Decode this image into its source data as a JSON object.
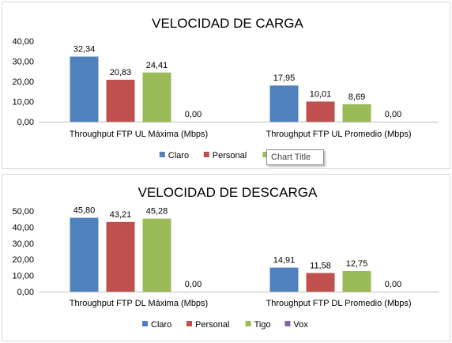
{
  "colors": {
    "Claro": "#4f81bd",
    "Personal": "#c0504d",
    "Tigo": "#9bbb59",
    "Vox": "#8064a2",
    "axis": "#bfbfbf",
    "grid": "#d9d9d9"
  },
  "tooltip": {
    "text": "Chart Title"
  },
  "chart_data": [
    {
      "type": "bar",
      "title": "VELOCIDAD DE CARGA",
      "categories": [
        "Throughput FTP UL Máxima (Mbps)",
        "Throughput FTP UL Promedio (Mbps)"
      ],
      "series": [
        {
          "name": "Claro",
          "values": [
            32.34,
            17.95
          ],
          "labels": [
            "32,34",
            "17,95"
          ]
        },
        {
          "name": "Personal",
          "values": [
            20.83,
            10.01
          ],
          "labels": [
            "20,83",
            "10,01"
          ]
        },
        {
          "name": "Tigo",
          "values": [
            24.41,
            8.69
          ],
          "labels": [
            "24,41",
            "8,69"
          ]
        },
        {
          "name": "Vox",
          "values": [
            0,
            0
          ],
          "labels": [
            "0,00",
            "0,00"
          ]
        }
      ],
      "ylim": [
        0,
        40
      ],
      "yticks": [
        "0,00",
        "10,00",
        "20,00",
        "30,00",
        "40,00"
      ],
      "grid": false,
      "legend": {
        "position": "bottom",
        "entries": [
          "Claro",
          "Personal",
          "Tigo"
        ]
      }
    },
    {
      "type": "bar",
      "title": "VELOCIDAD DE DESCARGA",
      "categories": [
        "Throughput FTP DL Máxima (Mbps)",
        "Throughput FTP DL Promedio (Mbps)"
      ],
      "series": [
        {
          "name": "Claro",
          "values": [
            45.8,
            14.91
          ],
          "labels": [
            "45,80",
            "14,91"
          ]
        },
        {
          "name": "Personal",
          "values": [
            43.21,
            11.58
          ],
          "labels": [
            "43,21",
            "11,58"
          ]
        },
        {
          "name": "Tigo",
          "values": [
            45.28,
            12.75
          ],
          "labels": [
            "45,28",
            "12,75"
          ]
        },
        {
          "name": "Vox",
          "values": [
            0,
            0
          ],
          "labels": [
            "0,00",
            "0,00"
          ]
        }
      ],
      "ylim": [
        0,
        50
      ],
      "yticks": [
        "0,00",
        "10,00",
        "20,00",
        "30,00",
        "40,00",
        "50,00"
      ],
      "grid": false,
      "legend": {
        "position": "bottom",
        "entries": [
          "Claro",
          "Personal",
          "Tigo",
          "Vox"
        ]
      }
    }
  ]
}
